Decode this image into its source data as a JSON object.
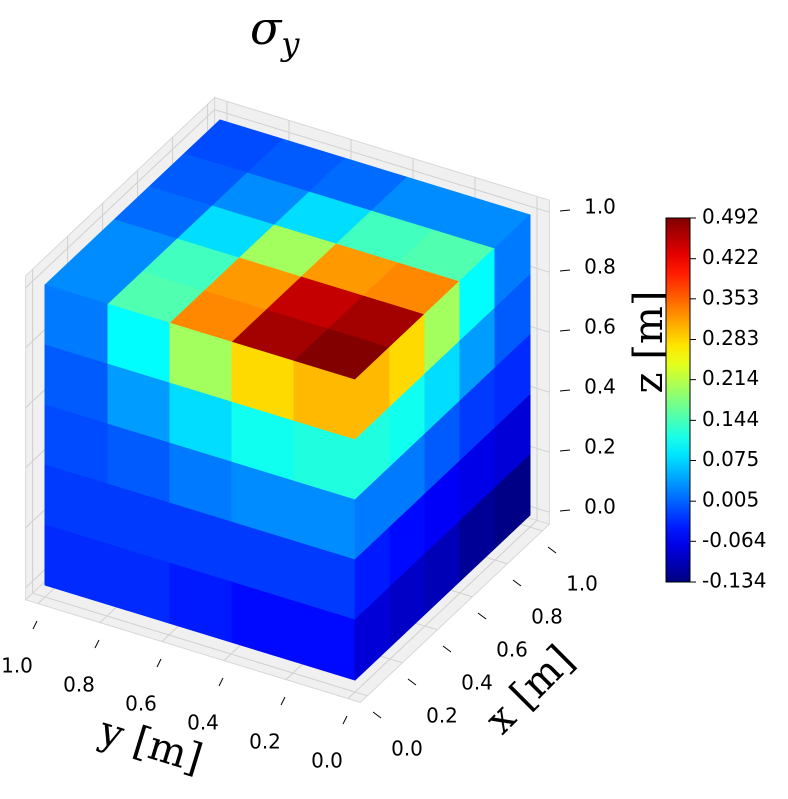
{
  "chart_data": {
    "type": "cube3d",
    "title": "σ",
    "title_subscript": "y",
    "xlabel": "x [m]",
    "ylabel": "y [m]",
    "zlabel": "z [m]",
    "colormap": "jet",
    "clim": [
      -0.134,
      0.492
    ],
    "cticks": [
      0.492,
      0.422,
      0.353,
      0.283,
      0.214,
      0.144,
      0.075,
      0.005,
      -0.064,
      -0.134
    ],
    "xlim": [
      0,
      1
    ],
    "ylim": [
      0,
      1
    ],
    "zlim": [
      0,
      1
    ],
    "xticks": [
      {
        "value": 0,
        "label": "0.0"
      },
      {
        "value": 0.2,
        "label": "0.2"
      },
      {
        "value": 0.4,
        "label": "0.4"
      },
      {
        "value": 0.6,
        "label": "0.6"
      },
      {
        "value": 0.8,
        "label": "0.8"
      },
      {
        "value": 1,
        "label": "1.0"
      }
    ],
    "yticks": [
      {
        "value": 0,
        "label": "0.0"
      },
      {
        "value": 0.2,
        "label": "0.2"
      },
      {
        "value": 0.4,
        "label": "0.4"
      },
      {
        "value": 0.6,
        "label": "0.6"
      },
      {
        "value": 0.8,
        "label": "0.8"
      },
      {
        "value": 1,
        "label": "1.0"
      }
    ],
    "zticks": [
      {
        "value": 0,
        "label": "0.0"
      },
      {
        "value": 0.2,
        "label": "0.2"
      },
      {
        "value": 0.4,
        "label": "0.4"
      },
      {
        "value": 0.6,
        "label": "0.6"
      },
      {
        "value": 0.8,
        "label": "0.8"
      },
      {
        "value": 1,
        "label": "1.0"
      }
    ],
    "grid": true,
    "faces": {
      "top": [
        [
          0.49,
          0.47,
          0.33,
          0.15,
          0.03
        ],
        [
          0.47,
          0.45,
          0.32,
          0.14,
          0.03
        ],
        [
          0.33,
          0.32,
          0.2,
          0.08,
          0.01
        ],
        [
          0.15,
          0.14,
          0.08,
          0.03,
          0.0
        ],
        [
          0.03,
          0.03,
          0.01,
          0.0,
          -0.01
        ]
      ],
      "x0": [
        [
          0.3,
          0.28,
          0.2,
          0.1,
          0.02
        ],
        [
          0.12,
          0.11,
          0.08,
          0.04,
          0.0
        ],
        [
          0.03,
          0.03,
          0.02,
          0.0,
          -0.01
        ],
        [
          -0.02,
          -0.02,
          -0.02,
          -0.02,
          -0.02
        ],
        [
          -0.05,
          -0.05,
          -0.04,
          -0.03,
          -0.03
        ]
      ],
      "y0": [
        [
          0.3,
          0.28,
          0.2,
          0.1,
          0.02
        ],
        [
          0.12,
          0.11,
          0.08,
          0.04,
          0.0
        ],
        [
          0.02,
          0.02,
          0.0,
          -0.02,
          -0.03
        ],
        [
          -0.04,
          -0.05,
          -0.06,
          -0.07,
          -0.08
        ],
        [
          -0.08,
          -0.09,
          -0.1,
          -0.12,
          -0.13
        ]
      ]
    }
  }
}
